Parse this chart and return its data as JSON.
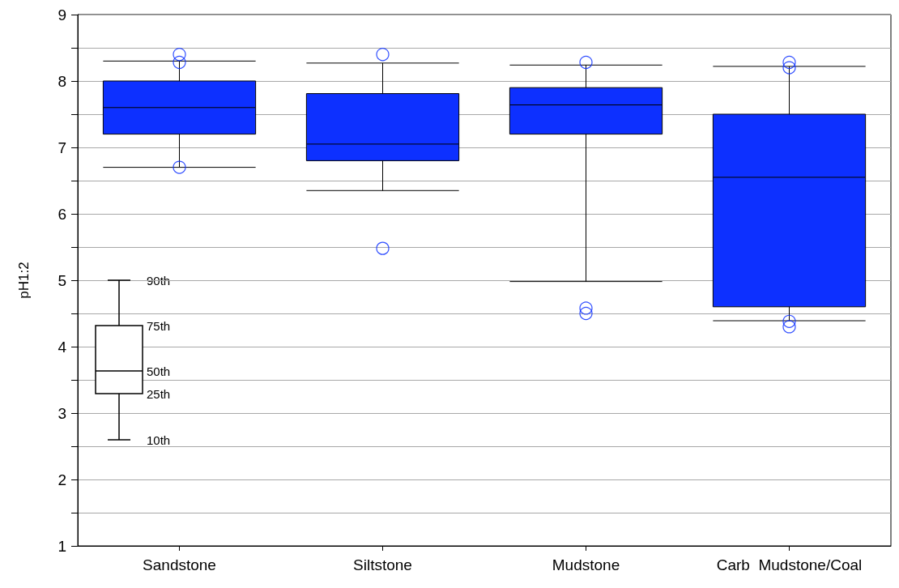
{
  "chart_data": {
    "type": "box",
    "ylabel": "pH1:2",
    "categories": [
      "Sandstone",
      "Siltstone",
      "Mudstone",
      "Carb  Mudstone/Coal"
    ],
    "series": [
      {
        "color": "#0d30ff",
        "boxes": [
          {
            "low": 6.7,
            "q1": 7.2,
            "median": 7.6,
            "q3": 8.0,
            "high": 8.3,
            "outliers": [
              8.4,
              8.28,
              6.7
            ]
          },
          {
            "low": 6.35,
            "q1": 6.8,
            "median": 7.05,
            "q3": 7.81,
            "high": 8.27,
            "outliers": [
              8.4,
              5.48
            ]
          },
          {
            "low": 4.98,
            "q1": 7.2,
            "median": 7.64,
            "q3": 7.9,
            "high": 8.24,
            "outliers": [
              8.28,
              4.58,
              4.5
            ]
          },
          {
            "low": 4.39,
            "q1": 4.6,
            "median": 6.55,
            "q3": 7.5,
            "high": 8.22,
            "outliers": [
              8.28,
              8.2,
              4.38,
              4.3
            ]
          }
        ]
      }
    ],
    "ylim": [
      1,
      9
    ],
    "yticks": [
      1,
      {
        "value": 1.5,
        "label": null
      },
      2,
      {
        "value": 2.5,
        "label": null
      },
      3,
      {
        "value": 3.5,
        "label": null
      },
      4,
      {
        "value": 4.5,
        "label": null
      },
      5,
      {
        "value": 5.5,
        "label": null
      },
      6,
      {
        "value": 6.5,
        "label": null
      },
      7,
      {
        "value": 7.5,
        "label": null
      },
      8,
      {
        "value": 8.5,
        "label": null
      },
      9
    ],
    "grid": "y",
    "marker": "circle",
    "annotations": [
      "90th",
      "75th",
      "50th",
      "25th",
      "10th"
    ]
  }
}
